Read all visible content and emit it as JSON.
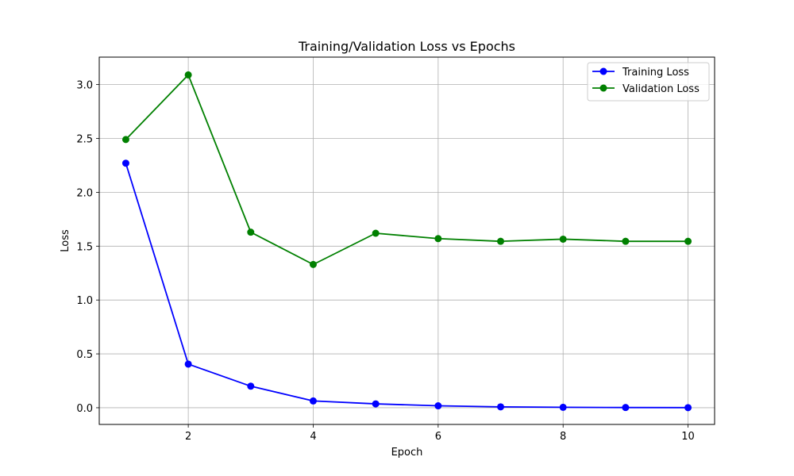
{
  "chart_data": {
    "type": "line",
    "title": "Training/Validation Loss vs Epochs",
    "xlabel": "Epoch",
    "ylabel": "Loss",
    "x": [
      1,
      2,
      3,
      4,
      5,
      6,
      7,
      8,
      9,
      10
    ],
    "xlim": [
      0.575,
      10.425
    ],
    "ylim": [
      -0.155,
      3.255
    ],
    "xticks": [
      2,
      4,
      6,
      8,
      10
    ],
    "yticks": [
      0.0,
      0.5,
      1.0,
      1.5,
      2.0,
      2.5,
      3.0
    ],
    "xtick_labels": [
      "2",
      "4",
      "6",
      "8",
      "10"
    ],
    "ytick_labels": [
      "0.0",
      "0.5",
      "1.0",
      "1.5",
      "2.0",
      "2.5",
      "3.0"
    ],
    "grid": true,
    "legend_position": "top-right",
    "series": [
      {
        "name": "Training Loss",
        "color": "#0000ff",
        "values": [
          2.27,
          0.405,
          0.2,
          0.063,
          0.036,
          0.018,
          0.008,
          0.004,
          0.002,
          0.001
        ]
      },
      {
        "name": "Validation Loss",
        "color": "#008000",
        "values": [
          2.49,
          3.09,
          1.63,
          1.33,
          1.62,
          1.57,
          1.545,
          1.565,
          1.545,
          1.545
        ]
      }
    ]
  }
}
